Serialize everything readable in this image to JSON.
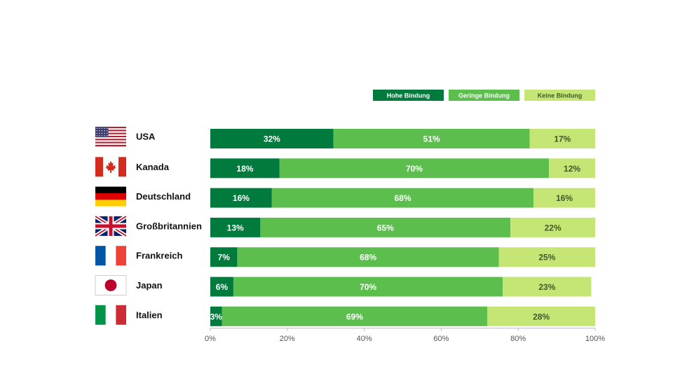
{
  "chart_data": {
    "type": "bar",
    "orientation": "horizontal",
    "stacked": true,
    "title": "",
    "xlabel": "",
    "ylabel": "",
    "xlim": [
      0,
      100
    ],
    "x_ticks": [
      "0%",
      "20%",
      "40%",
      "60%",
      "80%",
      "100%"
    ],
    "grid": false,
    "legend_position": "top-right",
    "categories": [
      "USA",
      "Kanada",
      "Deutschland",
      "Großbritannien",
      "Frankreich",
      "Japan",
      "Italien"
    ],
    "flags": [
      "us-flag-icon",
      "canada-flag-icon",
      "germany-flag-icon",
      "uk-flag-icon",
      "france-flag-icon",
      "japan-flag-icon",
      "italy-flag-icon"
    ],
    "series": [
      {
        "name": "Hohe Bindung",
        "color": "#007a3d",
        "label_color": "#ffffff",
        "values": [
          32,
          18,
          16,
          13,
          7,
          6,
          3
        ]
      },
      {
        "name": "Geringe Bindung",
        "color": "#5cbf4d",
        "label_color": "#ffffff",
        "values": [
          51,
          70,
          68,
          65,
          68,
          70,
          69
        ]
      },
      {
        "name": "Keine Bindung",
        "color": "#c5e675",
        "label_color": "#3f5a2a",
        "values": [
          17,
          12,
          16,
          22,
          25,
          23,
          28
        ]
      }
    ]
  }
}
